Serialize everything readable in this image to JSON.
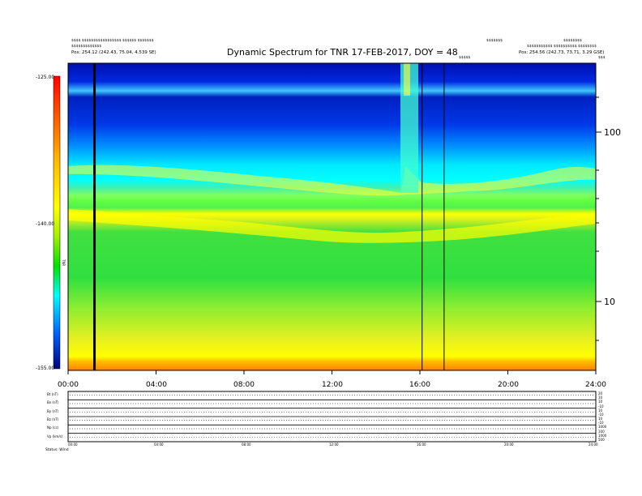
{
  "chart_data": [
    {
      "type": "heatmap",
      "title": "Dynamic Spectrum for TNR 17-FEB-2017, DOY = 48",
      "header_left": [
        "$$$$ $$$$$$$$$$$$$$$$$ $$$$$$ $$$$$$$",
        "$$$$$$$$$$$$$",
        "Pos:  254.12 (242.43, 75.04, 4.539 SE)"
      ],
      "header_right_top": [
        "$$$$$$$",
        "$$$$$$$$"
      ],
      "header_right_mid": "$$$$$$$$$$$ $$$$$$$$$$ $$$$$$$$",
      "header_right_pos": "Pos:  254.56 (242.73, 73.71, 3.29 GSE)",
      "event_label": "$$$$$",
      "top_right_tag": "$$$",
      "x_ticks": [
        "00:00",
        "04:00",
        "08:00",
        "12:00",
        "16:00",
        "20:00",
        "24:00"
      ],
      "xlim_hours": [
        0,
        24
      ],
      "y_right_ticks": [
        "100",
        "10"
      ],
      "yscale": "log",
      "colorbar": {
        "ticks": [
          "-125.00",
          "-140.00",
          "-155.00"
        ],
        "range": [
          -155,
          -125
        ],
        "label": "TNR",
        "colors": [
          "#7a0000",
          "#ff0000",
          "#ff8c00",
          "#ffff00",
          "#00e000",
          "#00ffff",
          "#0050ff",
          "#000080"
        ]
      },
      "vertical_lines_hours": [
        1.2,
        16.1,
        17.1
      ],
      "bands": [
        {
          "level": "top",
          "color": "#0018c8"
        },
        {
          "level": "upper",
          "color": "#00e8ff"
        },
        {
          "level": "plasma-line",
          "color": "#ffff00"
        },
        {
          "level": "middle",
          "color": "#33dd33"
        },
        {
          "level": "lower",
          "color": "#ddee22"
        },
        {
          "level": "bottom",
          "color": "#ff9900"
        }
      ]
    },
    {
      "type": "line",
      "panels": [
        {
          "label": "Bt (nT)",
          "right_ticks": [
            "20",
            "10"
          ]
        },
        {
          "label": "Bx (nT)",
          "right_ticks": [
            "10",
            "-10"
          ]
        },
        {
          "label": "By (nT)",
          "right_ticks": [
            "10",
            "-10"
          ]
        },
        {
          "label": "Bz (nT)",
          "right_ticks": [
            "10",
            "-10"
          ]
        },
        {
          "label": "Np (cc)",
          "right_ticks": [
            "1000",
            "100"
          ]
        },
        {
          "label": "Vp (km/s)",
          "right_ticks": [
            "1000",
            "500"
          ]
        }
      ],
      "x_ticks": [
        "00:00",
        "04:00",
        "08:00",
        "12:00",
        "16:00",
        "20:00",
        "24:00"
      ],
      "footer": "Status:  Wind"
    }
  ]
}
